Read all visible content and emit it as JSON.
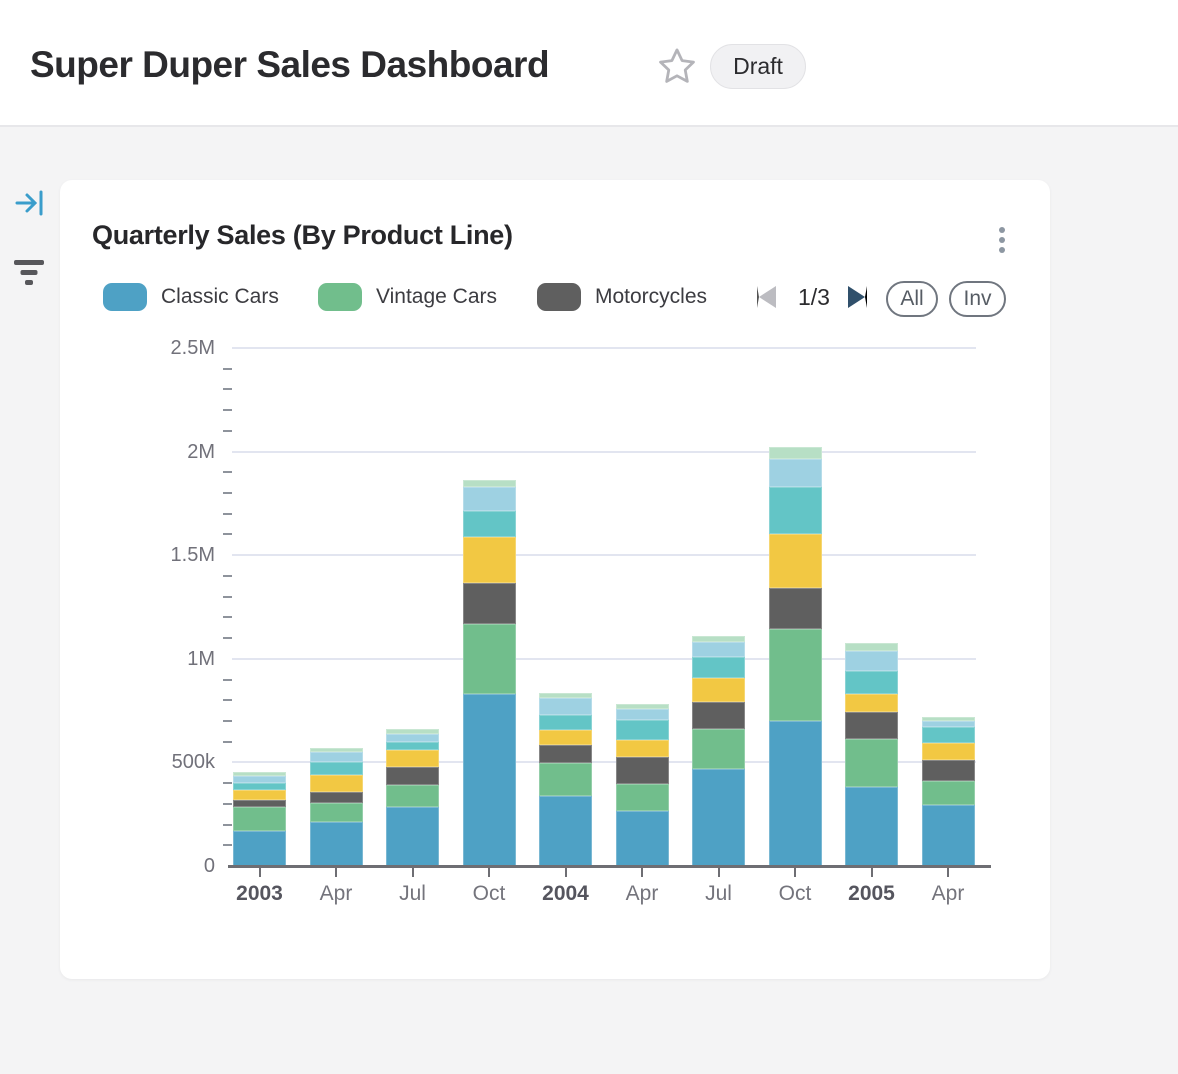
{
  "header": {
    "title": "Super Duper Sales Dashboard",
    "status_badge": "Draft"
  },
  "sidebar": {
    "icons": [
      {
        "name": "collapse-panel-icon",
        "color": "#3a9dcb"
      },
      {
        "name": "filter-icon",
        "color": "#57575b"
      }
    ]
  },
  "card": {
    "title": "Quarterly Sales (By Product Line)",
    "legend": {
      "items": [
        {
          "label": "Classic Cars",
          "color": "#4EA1C5"
        },
        {
          "label": "Vintage Cars",
          "color": "#71BE8C"
        },
        {
          "label": "Motorcycles",
          "color": "#5F5F5F"
        }
      ],
      "pagination": {
        "label": "1/3",
        "prev_enabled": false,
        "next_enabled": true
      },
      "buttons": [
        {
          "label": "All"
        },
        {
          "label": "Inv"
        }
      ]
    }
  },
  "chart_data": {
    "type": "bar",
    "stacked": true,
    "title": "Quarterly Sales (By Product Line)",
    "categories": [
      "2003",
      "Apr",
      "Jul",
      "Oct",
      "2004",
      "Apr",
      "Jul",
      "Oct",
      "2005",
      "Apr"
    ],
    "categories_bold": [
      true,
      false,
      false,
      false,
      true,
      false,
      false,
      false,
      true,
      false
    ],
    "series": [
      {
        "name": "Classic Cars",
        "color": "#4EA1C5",
        "values": [
          168000,
          211000,
          284000,
          831000,
          337000,
          267000,
          469000,
          699000,
          380000,
          296000
        ]
      },
      {
        "name": "Vintage Cars",
        "color": "#71BE8C",
        "values": [
          117000,
          90000,
          106000,
          338000,
          161000,
          129000,
          193000,
          446000,
          230000,
          116000
        ]
      },
      {
        "name": "Motorcycles",
        "color": "#5F5F5F",
        "values": [
          35000,
          52000,
          87000,
          198000,
          88000,
          129000,
          129000,
          198000,
          132000,
          101000
        ]
      },
      {
        "name": "unlabeled-series-yellow",
        "color": "#F2C843",
        "values": [
          46000,
          84000,
          80000,
          222000,
          73000,
          80000,
          117000,
          261000,
          89000,
          84000
        ]
      },
      {
        "name": "unlabeled-series-teal",
        "color": "#63C5C6",
        "values": [
          32000,
          65000,
          37000,
          124000,
          72000,
          97000,
          100000,
          225000,
          113000,
          77000
        ]
      },
      {
        "name": "unlabeled-series-light-blue",
        "color": "#9ED1E2",
        "values": [
          32000,
          50000,
          37000,
          116000,
          81000,
          53000,
          72000,
          133000,
          97000,
          27000
        ]
      },
      {
        "name": "unlabeled-series-light-green",
        "color": "#B7DFC5",
        "values": [
          19000,
          19000,
          23000,
          34000,
          24000,
          24000,
          29000,
          57000,
          37000,
          18000
        ]
      }
    ],
    "ylim": [
      0,
      2500000
    ],
    "ytick_values": [
      0,
      500000,
      1000000,
      1500000,
      2000000,
      2500000
    ],
    "ytick_labels": [
      "0",
      "500k",
      "1M",
      "1.5M",
      "2M",
      "2.5M"
    ],
    "minor_tick_step": 100000,
    "grid": "horizontal-major",
    "legend_position": "top",
    "legend_pages": "1/3"
  }
}
